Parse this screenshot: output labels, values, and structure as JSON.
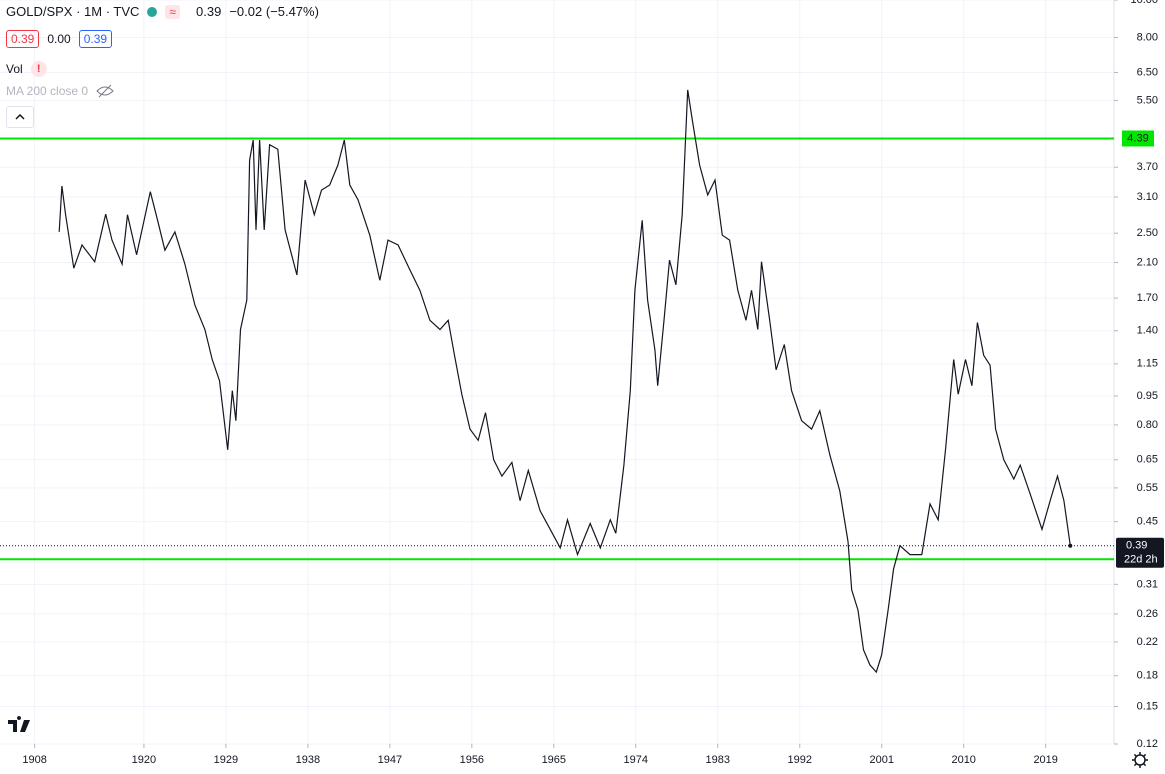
{
  "header": {
    "close": "0.39",
    "change": "−0.02 (−5.47%)",
    "bid": "0.39",
    "spread": "0.00",
    "ask": "0.39",
    "vol": "Vol",
    "ma": "MA 200 close 0"
  },
  "chart_data": {
    "type": "line",
    "title": "GOLD/SPX · 1M · TVC",
    "color": "#131722",
    "log_scale": true,
    "grid": true,
    "x": [
      1910.7,
      1911.0,
      1911.4,
      1912.3,
      1913.2,
      1914.6,
      1915.8,
      1916.5,
      1917.6,
      1918.2,
      1919.2,
      1920.7,
      1921.5,
      1922.3,
      1923.4,
      1924.5,
      1925.6,
      1926.7,
      1927.5,
      1928.3,
      1929.2,
      1929.7,
      1930.1,
      1930.6,
      1931.3,
      1931.6,
      1932.0,
      1932.3,
      1932.7,
      1933.2,
      1933.8,
      1934.7,
      1935.5,
      1936.8,
      1937.7,
      1938.7,
      1939.5,
      1940.4,
      1941.3,
      1942.0,
      1942.6,
      1943.5,
      1944.8,
      1945.9,
      1946.8,
      1947.9,
      1949.2,
      1950.3,
      1951.4,
      1952.5,
      1953.4,
      1954.1,
      1954.9,
      1955.8,
      1956.7,
      1957.5,
      1958.4,
      1959.3,
      1960.4,
      1961.3,
      1962.2,
      1963.5,
      1964.6,
      1965.7,
      1966.5,
      1967.6,
      1969.0,
      1970.1,
      1971.2,
      1971.8,
      1972.7,
      1973.4,
      1973.9,
      1974.7,
      1975.3,
      1976.1,
      1976.4,
      1977.1,
      1977.7,
      1978.4,
      1979.1,
      1979.7,
      1980.2,
      1981.0,
      1981.9,
      1982.7,
      1983.5,
      1984.3,
      1985.2,
      1986.1,
      1986.7,
      1987.4,
      1987.8,
      1988.7,
      1989.4,
      1990.3,
      1991.1,
      1992.2,
      1993.3,
      1994.2,
      1995.3,
      1996.4,
      1997.3,
      1997.7,
      1998.4,
      1999.0,
      1999.7,
      2000.4,
      2001.0,
      2001.7,
      2002.3,
      2003.0,
      2004.1,
      2005.4,
      2006.3,
      2007.2,
      2008.0,
      2008.9,
      2009.4,
      2010.2,
      2010.9,
      2011.5,
      2012.2,
      2012.9,
      2013.5,
      2014.4,
      2015.5,
      2016.2,
      2017.3,
      2018.6,
      2019.5,
      2020.3,
      2021.0,
      2021.7
    ],
    "values": [
      2.52,
      3.31,
      2.79,
      2.03,
      2.33,
      2.11,
      2.8,
      2.4,
      2.08,
      2.79,
      2.2,
      3.2,
      2.7,
      2.26,
      2.52,
      2.08,
      1.63,
      1.41,
      1.18,
      1.04,
      0.69,
      0.98,
      0.82,
      1.41,
      1.68,
      3.86,
      4.35,
      2.55,
      4.35,
      2.55,
      4.23,
      4.12,
      2.55,
      1.95,
      3.43,
      2.79,
      3.23,
      3.33,
      3.75,
      4.35,
      3.33,
      3.05,
      2.47,
      1.89,
      2.4,
      2.33,
      2.01,
      1.78,
      1.49,
      1.41,
      1.49,
      1.21,
      0.96,
      0.78,
      0.73,
      0.86,
      0.65,
      0.59,
      0.64,
      0.51,
      0.61,
      0.48,
      0.43,
      0.385,
      0.455,
      0.37,
      0.445,
      0.385,
      0.455,
      0.42,
      0.63,
      0.98,
      1.78,
      2.7,
      1.68,
      1.25,
      1.01,
      1.49,
      2.13,
      1.84,
      2.79,
      5.86,
      4.9,
      3.75,
      3.14,
      3.43,
      2.47,
      2.4,
      1.78,
      1.49,
      1.78,
      1.41,
      2.11,
      1.49,
      1.11,
      1.29,
      0.98,
      0.82,
      0.78,
      0.87,
      0.67,
      0.54,
      0.4,
      0.3,
      0.266,
      0.21,
      0.192,
      0.184,
      0.204,
      0.266,
      0.34,
      0.39,
      0.37,
      0.37,
      0.5,
      0.455,
      0.69,
      1.18,
      0.96,
      1.18,
      1.01,
      1.47,
      1.21,
      1.14,
      0.78,
      0.65,
      0.58,
      0.63,
      0.53,
      0.43,
      0.51,
      0.59,
      0.51,
      0.39
    ],
    "xlim": [
      1904.2,
      2026.5
    ],
    "xticks": [
      1908,
      1920,
      1929,
      1938,
      1947,
      1956,
      1965,
      1974,
      1983,
      1992,
      2001,
      2010,
      2019
    ],
    "ylim": [
      0.12,
      10
    ],
    "yticks": [
      {
        "value": 10,
        "label": "10.00"
      },
      {
        "value": 8,
        "label": "8.00"
      },
      {
        "value": 6.5,
        "label": "6.50"
      },
      {
        "value": 5.5,
        "label": "5.50"
      },
      {
        "value": 3.7,
        "label": "3.70"
      },
      {
        "value": 3.1,
        "label": "3.10"
      },
      {
        "value": 2.5,
        "label": "2.50"
      },
      {
        "value": 2.1,
        "label": "2.10"
      },
      {
        "value": 1.7,
        "label": "1.70"
      },
      {
        "value": 1.4,
        "label": "1.40"
      },
      1.15,
      0.95,
      {
        "value": 0.8,
        "label": "0.80"
      },
      0.65,
      0.55,
      0.45,
      0.31,
      0.26,
      0.22,
      0.18,
      0.15,
      0.12
    ],
    "hlines": [
      {
        "value": 4.39,
        "color": "#00e600"
      },
      {
        "value": 0.36,
        "color": "#00e600"
      }
    ],
    "countdown": "22d 2h"
  }
}
